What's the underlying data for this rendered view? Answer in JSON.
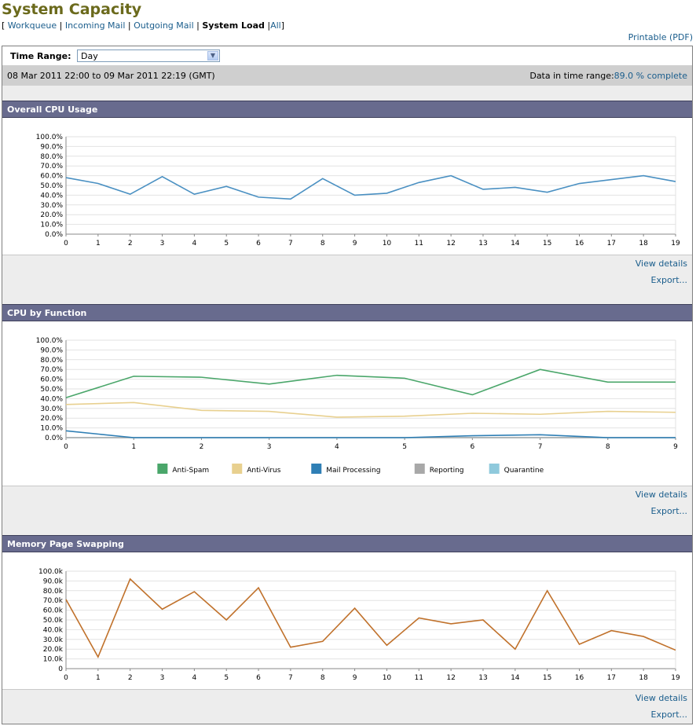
{
  "header": {
    "title": "System Capacity"
  },
  "nav": {
    "open_bracket": "[",
    "close_bracket": "]",
    "sep": "|",
    "items": [
      {
        "label": "Workqueue",
        "current": false
      },
      {
        "label": "Incoming Mail",
        "current": false
      },
      {
        "label": "Outgoing Mail",
        "current": false
      },
      {
        "label": "System Load",
        "current": true
      },
      {
        "label": "All",
        "current": false
      }
    ]
  },
  "printable": "Printable (PDF)",
  "time_range": {
    "label": "Time Range:",
    "value": "Day"
  },
  "info": {
    "range": "08 Mar 2011 22:00 to 09 Mar 2011 22:19 (GMT)",
    "complete_label": "Data in time range:",
    "complete_value": "89.0 % complete"
  },
  "links": {
    "view_details": "View details",
    "export": "Export..."
  },
  "sections": {
    "cpu_usage": "Overall CPU Usage",
    "cpu_function": "CPU by Function",
    "memory": "Memory Page Swapping"
  },
  "colors": {
    "accent_title": "#6b6a1c",
    "section_header": "#686b8e",
    "link": "#1a5d8c"
  },
  "chart_data": [
    {
      "type": "line",
      "title": "",
      "x": [
        0,
        1,
        2,
        3,
        4,
        5,
        6,
        7,
        8,
        9,
        10,
        11,
        12,
        13,
        14,
        15,
        16,
        17,
        18,
        19
      ],
      "ytick_labels": [
        "0.0%",
        "10.0%",
        "20.0%",
        "30.0%",
        "40.0%",
        "50.0%",
        "60.0%",
        "70.0%",
        "80.0%",
        "90.0%",
        "100.0%"
      ],
      "ylim": [
        0,
        100
      ],
      "grid": true,
      "series": [
        {
          "color": "#4a90c2",
          "values": [
            58,
            52,
            41,
            59,
            41,
            49,
            38,
            36,
            57,
            40,
            42,
            53,
            60,
            46,
            48,
            43,
            52,
            56,
            60,
            54
          ]
        }
      ]
    },
    {
      "type": "line",
      "title": "",
      "x": [
        0,
        1,
        2,
        3,
        4,
        5,
        6,
        7,
        8,
        9
      ],
      "ytick_labels": [
        "0.0%",
        "10.0%",
        "20.0%",
        "30.0%",
        "40.0%",
        "50.0%",
        "60.0%",
        "70.0%",
        "80.0%",
        "90.0%",
        "100.0%"
      ],
      "ylim": [
        0,
        100
      ],
      "grid": true,
      "legend": "bottom",
      "series": [
        {
          "name": "Anti-Spam",
          "color": "#4aa66a",
          "values": [
            41,
            63,
            62,
            55,
            64,
            61,
            44,
            70,
            57,
            57
          ]
        },
        {
          "name": "Anti-Virus",
          "color": "#e8d08f",
          "values": [
            34,
            36,
            28,
            27,
            21,
            22,
            25,
            24,
            27,
            26
          ]
        },
        {
          "name": "Mail Processing",
          "color": "#2f7fb5",
          "values": [
            7,
            0,
            0,
            0,
            0,
            0,
            2,
            3,
            0,
            0
          ]
        },
        {
          "name": "Reporting",
          "color": "#a8a8a8",
          "values": [
            0,
            0,
            0,
            0,
            0,
            0,
            0,
            0,
            0,
            0
          ]
        },
        {
          "name": "Quarantine",
          "color": "#8fc9dc",
          "values": [
            0,
            0,
            0,
            0,
            0,
            0,
            0,
            0,
            0,
            0
          ]
        }
      ]
    },
    {
      "type": "line",
      "title": "",
      "x": [
        0,
        1,
        2,
        3,
        4,
        5,
        6,
        7,
        8,
        9,
        10,
        11,
        12,
        13,
        14,
        15,
        16,
        17,
        18,
        19
      ],
      "ytick_labels": [
        "0",
        "10.0k",
        "20.0k",
        "30.0k",
        "40.0k",
        "50.0k",
        "60.0k",
        "70.0k",
        "80.0k",
        "90.0k",
        "100.0k"
      ],
      "ylim": [
        0,
        100000
      ],
      "grid": true,
      "series": [
        {
          "color": "#c0712b",
          "values": [
            71000,
            12000,
            92000,
            61000,
            79000,
            50000,
            83000,
            22000,
            28000,
            62000,
            24000,
            52000,
            46000,
            50000,
            20000,
            80000,
            25000,
            39000,
            33000,
            19000
          ]
        }
      ]
    }
  ]
}
